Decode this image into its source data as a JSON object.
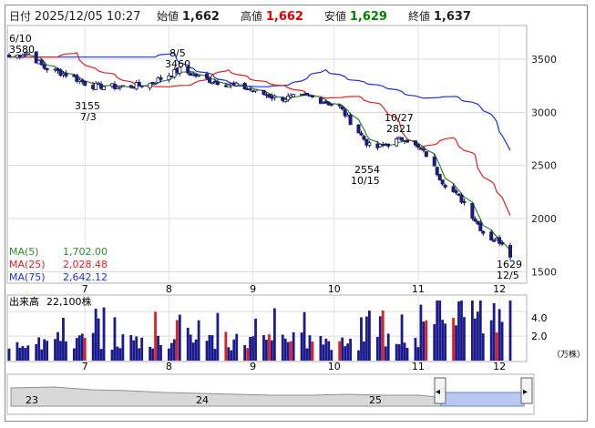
{
  "header": {
    "date_label": "日付",
    "date_value": "2025/12/05 10:27",
    "open_label": "始値",
    "open_value": "1,662",
    "high_label": "高値",
    "high_value": "1,662",
    "low_label": "安値",
    "low_value": "1,629",
    "close_label": "終値",
    "close_value": "1,637",
    "colors": {
      "high": "#e00000",
      "low": "#008000",
      "text": "#222222"
    }
  },
  "annotations": {
    "high_610": {
      "date": "6/10",
      "value": "3580"
    },
    "high_85": {
      "date": "8/5",
      "value": "3460"
    },
    "low_73": {
      "value": "3155",
      "date": "7/3"
    },
    "high_1027": {
      "date": "10/27",
      "value": "2821"
    },
    "low_1015": {
      "value": "2554",
      "date": "10/15"
    },
    "low_125": {
      "value": "1629",
      "date": "12/5"
    }
  },
  "legend": {
    "ma5": {
      "label": "MA(5)",
      "value": "1,702.00",
      "color": "#2e8b2e"
    },
    "ma25": {
      "label": "MA(25)",
      "value": "2,028.48",
      "color": "#e02020"
    },
    "ma75": {
      "label": "MA(75)",
      "value": "2,642.12",
      "color": "#2030e0"
    }
  },
  "volume": {
    "label": "出来高",
    "value": "22,100株",
    "unit": "（万株）",
    "ticks": [
      "4.0",
      "2.0"
    ]
  },
  "navigator": {
    "year_labels": [
      "23",
      "24",
      "25"
    ],
    "left_handle": "◂",
    "right_handle": "▸"
  },
  "chart_data": {
    "type": "candlestick",
    "x_tick_labels": [
      "7",
      "8",
      "9",
      "10",
      "11",
      "12"
    ],
    "y_tick_labels": [
      "3500",
      "3000",
      "2500",
      "2000",
      "1500"
    ],
    "ylim": [
      1400,
      3800
    ],
    "volume_ylim": [
      0,
      5.2
    ],
    "up_color": "#ffffff",
    "down_color": "#1a1a8c",
    "volume_color_primary": "#1a1a8c",
    "volume_color_alt": "#e02020",
    "anchors": [
      {
        "d": "6/3",
        "p": 3520
      },
      {
        "d": "6/10",
        "p": 3560
      },
      {
        "d": "6/16",
        "p": 3420
      },
      {
        "d": "6/25",
        "p": 3350
      },
      {
        "d": "7/3",
        "p": 3250
      },
      {
        "d": "7/14",
        "p": 3240
      },
      {
        "d": "7/24",
        "p": 3260
      },
      {
        "d": "8/5",
        "p": 3400
      },
      {
        "d": "8/15",
        "p": 3310
      },
      {
        "d": "8/29",
        "p": 3230
      },
      {
        "d": "9/10",
        "p": 3130
      },
      {
        "d": "9/22",
        "p": 3150
      },
      {
        "d": "10/3",
        "p": 3050
      },
      {
        "d": "10/8",
        "p": 2880
      },
      {
        "d": "10/15",
        "p": 2650
      },
      {
        "d": "10/27",
        "p": 2760
      },
      {
        "d": "11/4",
        "p": 2600
      },
      {
        "d": "11/10",
        "p": 2350
      },
      {
        "d": "11/18",
        "p": 2150
      },
      {
        "d": "11/26",
        "p": 1830
      },
      {
        "d": "12/2",
        "p": 1780
      },
      {
        "d": "12/5",
        "p": 1637
      }
    ],
    "ma5_last": 1702.0,
    "ma25_last": 2028.48,
    "ma75_last": 2642.12
  }
}
